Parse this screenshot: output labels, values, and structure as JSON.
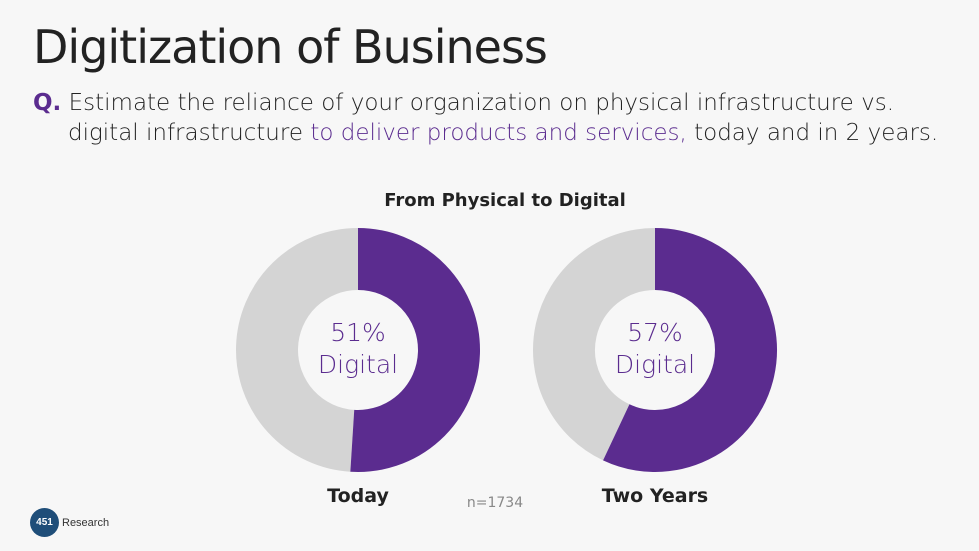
{
  "slide": {
    "title": "Digitization of Business",
    "question": {
      "label": "Q.",
      "text_part1": "Estimate the reliance of your organization on physical infrastructure vs.",
      "text_part2": "digital infrastructure ",
      "text_emphasis": "to deliver products and services,",
      "text_part3": " today and in 2 years."
    },
    "sample_note": "n=1734",
    "logo": {
      "mark": "451",
      "text": "Research"
    }
  },
  "colors": {
    "digital": "#5b2c8f",
    "physical": "#d4d4d4",
    "background": "#f7f7f7"
  },
  "chart_data": {
    "type": "pie",
    "title": "From Physical to Digital",
    "categories": [
      "Today",
      "Two Years"
    ],
    "series": [
      {
        "name": "Digital",
        "values": [
          51,
          57
        ]
      }
    ],
    "center_labels": [
      {
        "value": "51%",
        "text": "Digital"
      },
      {
        "value": "57%",
        "text": "Digital"
      }
    ]
  }
}
